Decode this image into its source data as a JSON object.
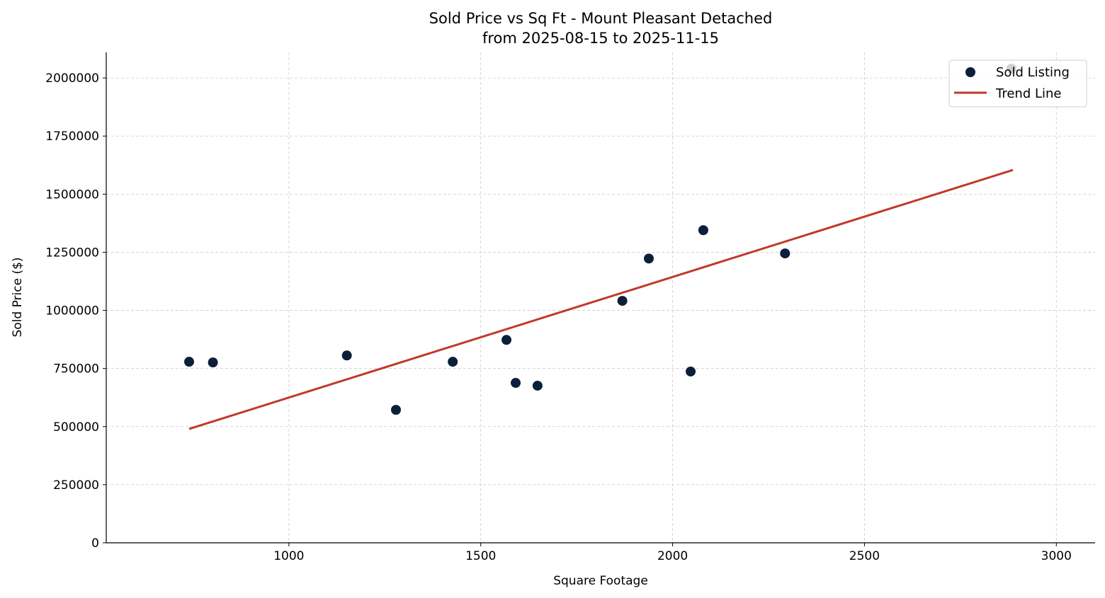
{
  "chart_data": {
    "type": "scatter",
    "title": "Sold Price vs Sq Ft - Mount Pleasant Detached",
    "subtitle": "from 2025-08-15 to 2025-11-15",
    "xlabel": "Square Footage",
    "ylabel": "Sold Price ($)",
    "xlim": [
      524,
      3101
    ],
    "ylim": [
      0,
      2110000
    ],
    "xticks": [
      1000,
      1500,
      2000,
      2500,
      3000
    ],
    "yticks": [
      0,
      250000,
      500000,
      750000,
      1000000,
      1250000,
      1500000,
      1750000,
      2000000
    ],
    "grid": true,
    "legend_placement": "top-right",
    "series": [
      {
        "name": "Sold Listing",
        "kind": "scatter",
        "color": "#0b1f3a",
        "points": [
          [
            740,
            779000
          ],
          [
            802,
            776000
          ],
          [
            1151,
            806000
          ],
          [
            1279,
            572000
          ],
          [
            1427,
            779000
          ],
          [
            1567,
            873000
          ],
          [
            1591,
            688000
          ],
          [
            1648,
            676000
          ],
          [
            1869,
            1041000
          ],
          [
            1938,
            1223000
          ],
          [
            2047,
            737000
          ],
          [
            2080,
            1345000
          ],
          [
            2293,
            1245000
          ],
          [
            2883,
            2040000
          ]
        ]
      },
      {
        "name": "Trend Line",
        "kind": "line",
        "color": "#c0392b",
        "points": [
          [
            740,
            490000
          ],
          [
            2887,
            1604000
          ]
        ]
      }
    ]
  }
}
